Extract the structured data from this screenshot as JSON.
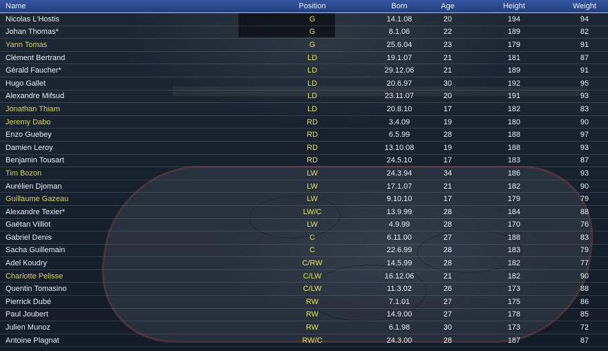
{
  "columns": {
    "name": "Name",
    "position": "Position",
    "born": "Born",
    "age": "Age",
    "height": "Height",
    "weight": "Weight"
  },
  "colors": {
    "header_bg": "#2a4a92",
    "position_text": "#e8e04a",
    "highlight_name": "#d8d24e",
    "default_text": "#e6ecf2"
  },
  "players": [
    {
      "name": "Nicolas L'Hostis",
      "position": "G",
      "born": "14.1.08",
      "age": "20",
      "height": "194",
      "weight": "94",
      "highlight": false
    },
    {
      "name": "Johan Thomas*",
      "position": "G",
      "born": "8.1.06",
      "age": "22",
      "height": "189",
      "weight": "82",
      "highlight": false
    },
    {
      "name": "Yann Tomas",
      "position": "G",
      "born": "25.6.04",
      "age": "23",
      "height": "179",
      "weight": "91",
      "highlight": true
    },
    {
      "name": "Clément Bertrand",
      "position": "LD",
      "born": "19.1.07",
      "age": "21",
      "height": "181",
      "weight": "87",
      "highlight": false
    },
    {
      "name": "Gérald Faucher*",
      "position": "LD",
      "born": "29.12.06",
      "age": "21",
      "height": "189",
      "weight": "91",
      "highlight": false
    },
    {
      "name": "Hugo Gallet",
      "position": "LD",
      "born": "20.6.97",
      "age": "30",
      "height": "192",
      "weight": "95",
      "highlight": false
    },
    {
      "name": "Alexandre Mifsud",
      "position": "LD",
      "born": "23.11.07",
      "age": "20",
      "height": "191",
      "weight": "93",
      "highlight": false
    },
    {
      "name": "Jonathan Thiam",
      "position": "LD",
      "born": "20.8.10",
      "age": "17",
      "height": "182",
      "weight": "83",
      "highlight": true
    },
    {
      "name": "Jeremy Dabo",
      "position": "RD",
      "born": "3.4.09",
      "age": "19",
      "height": "180",
      "weight": "90",
      "highlight": true
    },
    {
      "name": "Enzo Guebey",
      "position": "RD",
      "born": "6.5.99",
      "age": "28",
      "height": "188",
      "weight": "97",
      "highlight": false
    },
    {
      "name": "Damien Leroy",
      "position": "RD",
      "born": "13.10.08",
      "age": "19",
      "height": "188",
      "weight": "93",
      "highlight": false
    },
    {
      "name": "Benjamin Tousart",
      "position": "RD",
      "born": "24.5.10",
      "age": "17",
      "height": "183",
      "weight": "87",
      "highlight": false
    },
    {
      "name": "Tim Bozon",
      "position": "LW",
      "born": "24.3.94",
      "age": "34",
      "height": "186",
      "weight": "93",
      "highlight": true
    },
    {
      "name": "Aurélien Djoman",
      "position": "LW",
      "born": "17.1.07",
      "age": "21",
      "height": "182",
      "weight": "90",
      "highlight": false
    },
    {
      "name": "Guillaume Gazeau",
      "position": "LW",
      "born": "9.10.10",
      "age": "17",
      "height": "179",
      "weight": "79",
      "highlight": true
    },
    {
      "name": "Alexandre Texier*",
      "position": "LW/C",
      "born": "13.9.99",
      "age": "28",
      "height": "184",
      "weight": "88",
      "highlight": false
    },
    {
      "name": "Gaëtan Villiot",
      "position": "LW",
      "born": "4.9.99",
      "age": "28",
      "height": "170",
      "weight": "76",
      "highlight": false
    },
    {
      "name": "Gabriel Denis",
      "position": "C",
      "born": "6.11.00",
      "age": "27",
      "height": "188",
      "weight": "83",
      "highlight": false
    },
    {
      "name": "Sacha Guillemain",
      "position": "C",
      "born": "22.6.99",
      "age": "28",
      "height": "183",
      "weight": "79",
      "highlight": false
    },
    {
      "name": "Adel Koudry",
      "position": "C/RW",
      "born": "14.5.99",
      "age": "28",
      "height": "182",
      "weight": "77",
      "highlight": false
    },
    {
      "name": "Charlotte Pelisse",
      "position": "C/LW",
      "born": "16.12.06",
      "age": "21",
      "height": "182",
      "weight": "90",
      "highlight": true
    },
    {
      "name": "Quentin Tomasino",
      "position": "C/LW",
      "born": "11.3.02",
      "age": "26",
      "height": "173",
      "weight": "88",
      "highlight": false
    },
    {
      "name": "Pierrick Dubé",
      "position": "RW",
      "born": "7.1.01",
      "age": "27",
      "height": "175",
      "weight": "86",
      "highlight": false
    },
    {
      "name": "Paul Joubert",
      "position": "RW",
      "born": "14.9.00",
      "age": "27",
      "height": "178",
      "weight": "85",
      "highlight": false
    },
    {
      "name": "Julien Munoz",
      "position": "RW",
      "born": "6.1.98",
      "age": "30",
      "height": "173",
      "weight": "72",
      "highlight": false
    },
    {
      "name": "Antoine Plagnat",
      "position": "RW/C",
      "born": "24.3.00",
      "age": "28",
      "height": "187",
      "weight": "87",
      "highlight": false
    }
  ]
}
